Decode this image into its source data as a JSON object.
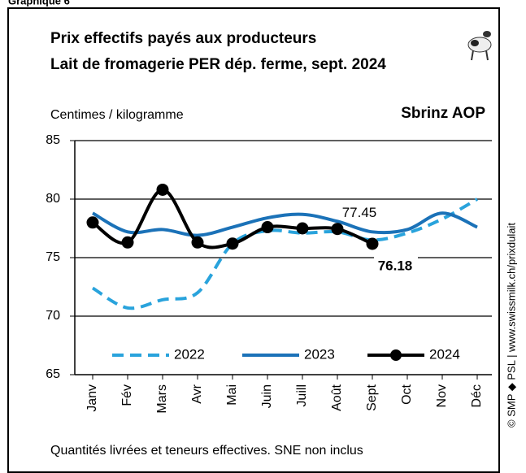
{
  "chart_data": {
    "type": "line",
    "figure_label": "Graphique 6",
    "title": "Prix effectifs payés aux producteurs",
    "subtitle": "Lait de fromagerie PER dép. ferme, sept. 2024",
    "ylabel": "Centimes / kilogramme",
    "product": "Sbrinz AOP",
    "note": "Quantités livrées et teneurs effectives. SNE non inclus",
    "source": "© SMP ◆ PSL | www.swissmilk.ch/prixdulait",
    "categories": [
      "Janv",
      "Fév",
      "Mars",
      "Avr",
      "Mai",
      "Juin",
      "Juill",
      "Août",
      "Sept",
      "Oct",
      "Nov",
      "Déc"
    ],
    "series": [
      {
        "name": "2022",
        "color": "#29a3dc",
        "dashed": true,
        "markers": false,
        "values": [
          72.4,
          70.7,
          71.4,
          72.0,
          76.2,
          77.3,
          77.1,
          77.2,
          76.5,
          77.1,
          78.3,
          80.0
        ]
      },
      {
        "name": "2023",
        "color": "#1b72b8",
        "dashed": false,
        "markers": false,
        "values": [
          78.8,
          77.2,
          77.4,
          76.9,
          77.6,
          78.4,
          78.7,
          78.1,
          77.2,
          77.4,
          78.8,
          77.6
        ]
      },
      {
        "name": "2024",
        "color": "#000000",
        "dashed": false,
        "markers": true,
        "values": [
          78.0,
          76.3,
          80.8,
          76.3,
          76.2,
          77.6,
          77.5,
          77.45,
          76.18,
          null,
          null,
          null
        ]
      }
    ],
    "ylim": [
      65,
      85
    ],
    "yticks": [
      65,
      70,
      75,
      80,
      85
    ],
    "grid": true
  }
}
